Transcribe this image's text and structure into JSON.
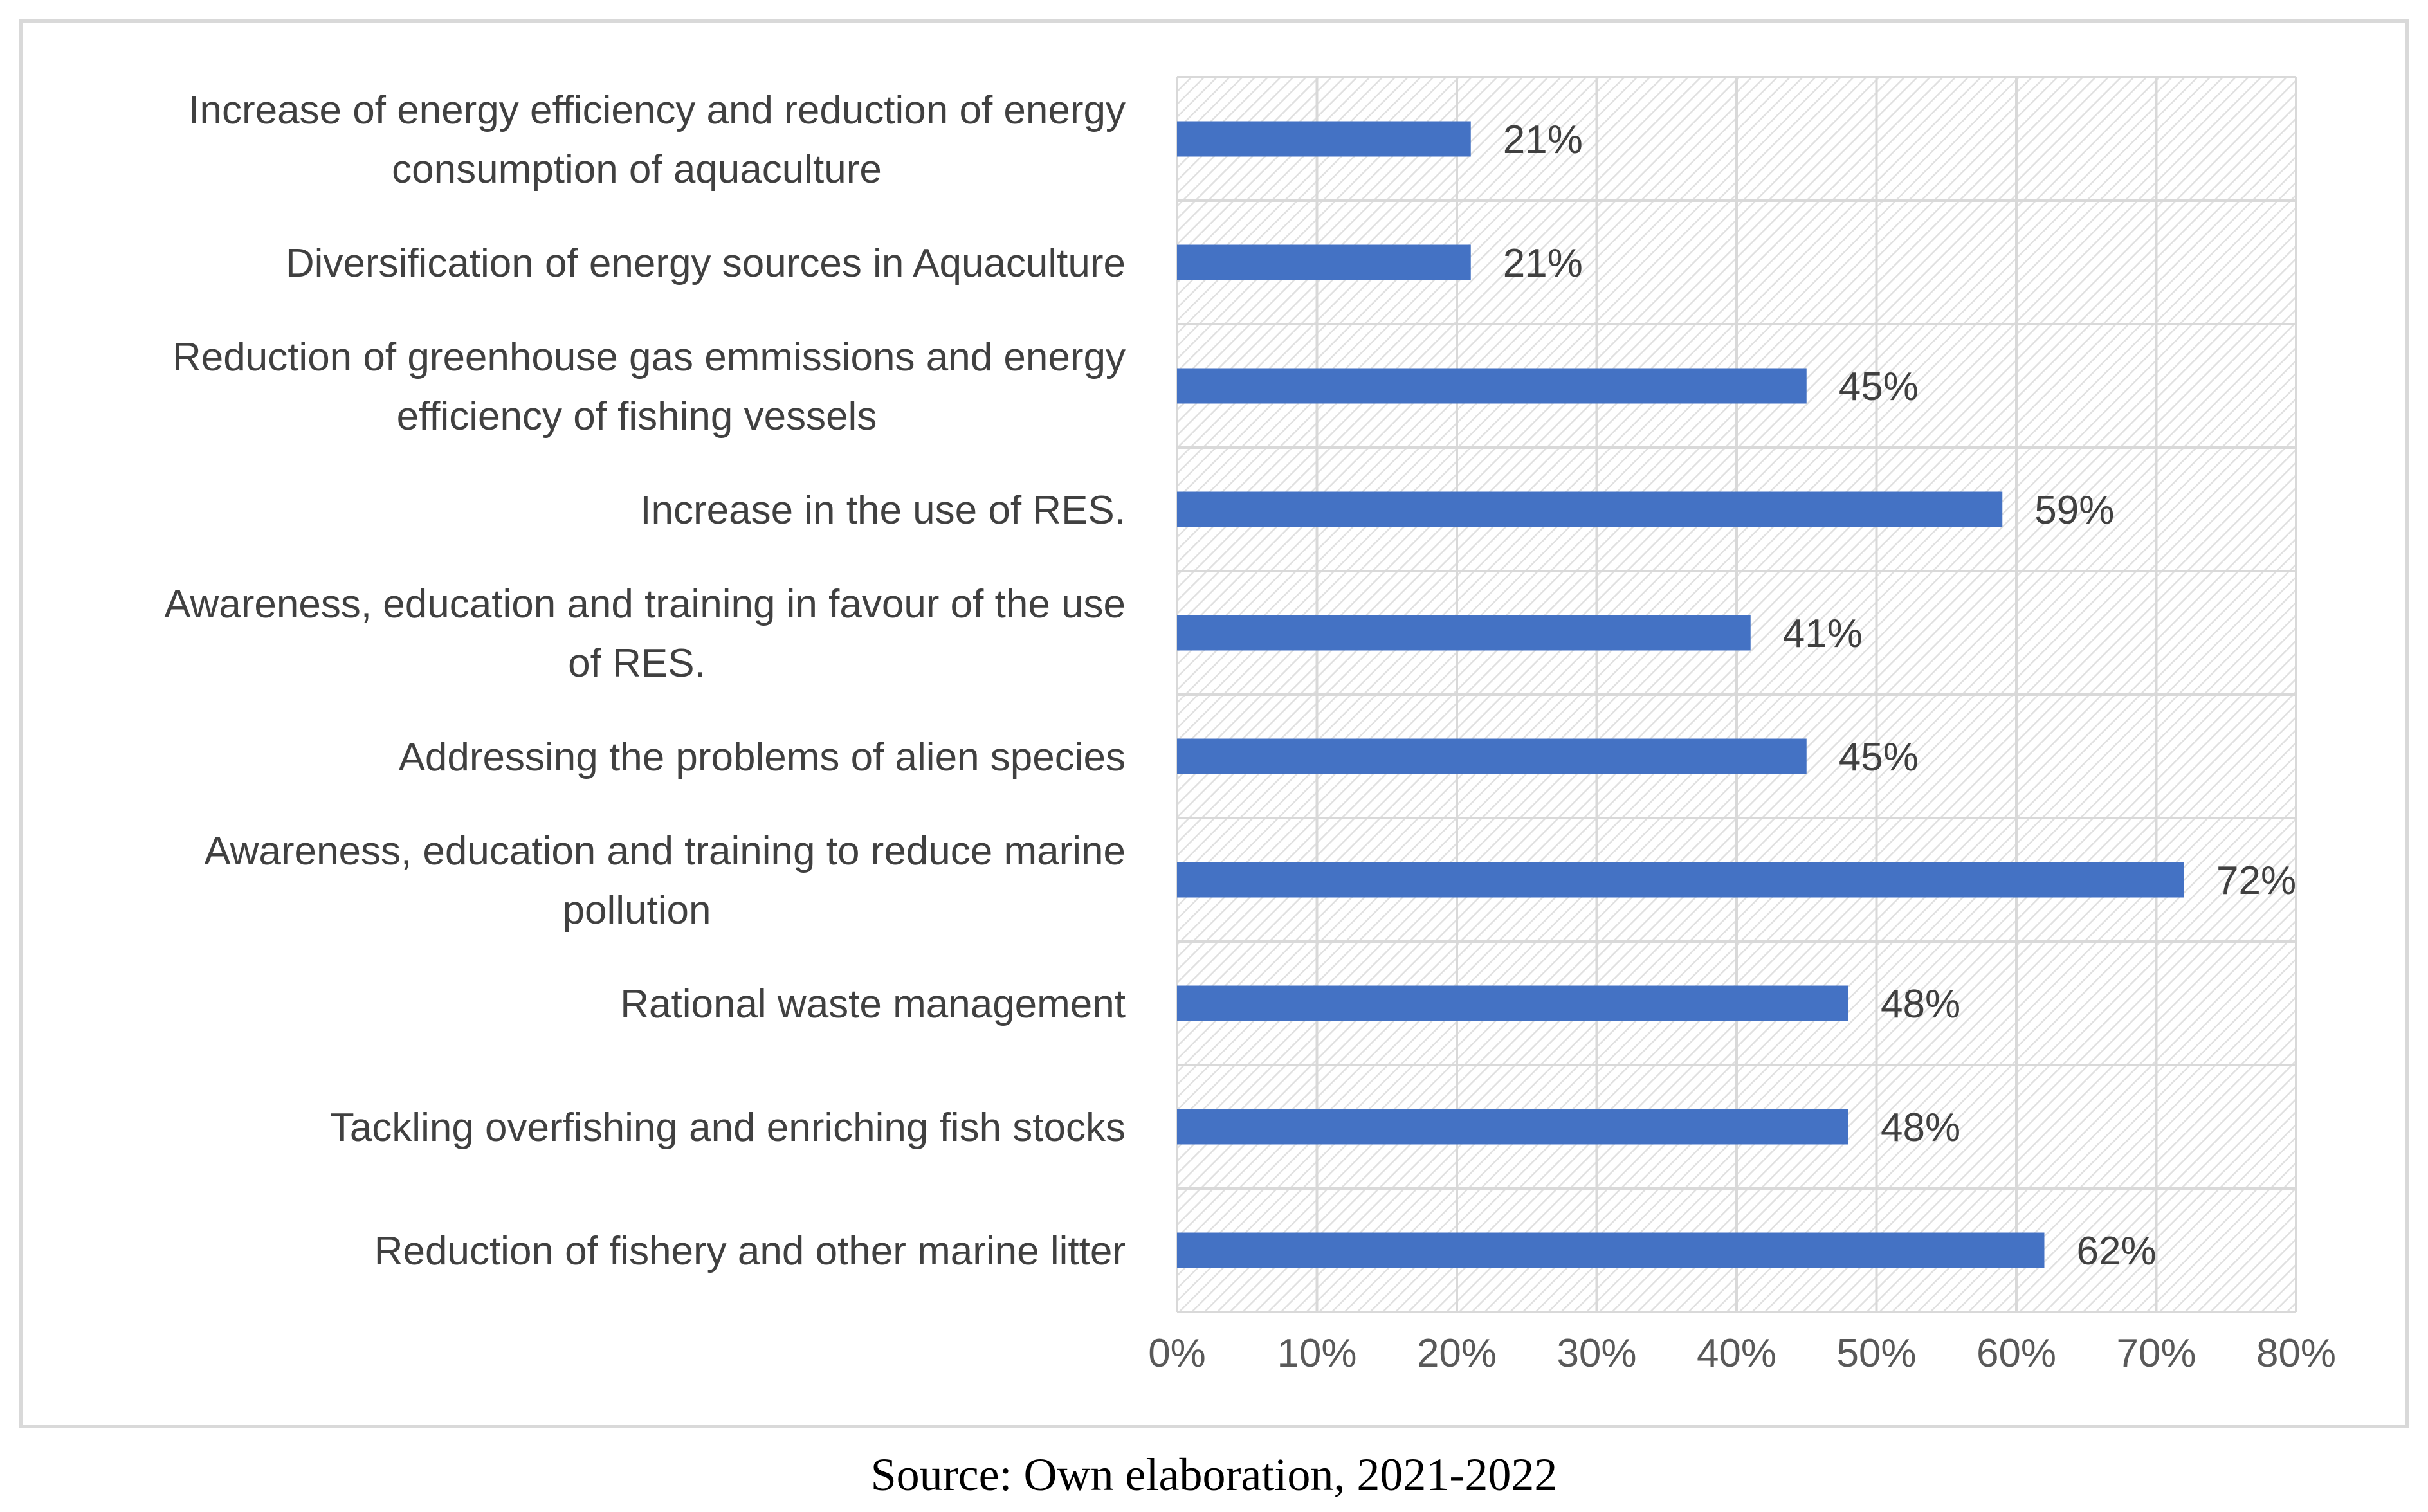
{
  "chart_data": {
    "type": "bar",
    "orientation": "horizontal",
    "categories": [
      "Increase of energy efficiency and reduction of energy consumption of aquaculture",
      "Diversification of energy sources in Aquaculture",
      "Reduction of greenhouse gas emmissions and energy efficiency of fishing vessels",
      "Increase in the use of RES.",
      "Awareness, education and training in favour of the use of RES.",
      "Addressing the problems of alien species",
      "Awareness, education and training to reduce marine pollution",
      "Rational waste management",
      "Tackling overfishing and enriching fish stocks",
      "Reduction of fishery and other marine litter"
    ],
    "category_lines": [
      [
        "Increase of energy efficiency and reduction of energy",
        "consumption of aquaculture"
      ],
      [
        "Diversification of energy sources in Aquaculture"
      ],
      [
        "Reduction of greenhouse gas emmissions and energy",
        "efficiency of fishing vessels"
      ],
      [
        "Increase in the use of RES."
      ],
      [
        "Awareness, education and training in favour of the use",
        "of RES."
      ],
      [
        "Addressing the problems of alien species"
      ],
      [
        "Awareness, education and training to reduce marine",
        "pollution"
      ],
      [
        "Rational waste management"
      ],
      [
        "Tackling overfishing and enriching fish stocks"
      ],
      [
        "Reduction of fishery and other marine litter"
      ]
    ],
    "values": [
      21,
      21,
      45,
      59,
      41,
      45,
      72,
      48,
      48,
      62
    ],
    "data_labels": [
      "21%",
      "21%",
      "45%",
      "59%",
      "41%",
      "45%",
      "72%",
      "48%",
      "48%",
      "62%"
    ],
    "x_ticks": [
      "0%",
      "10%",
      "20%",
      "30%",
      "40%",
      "50%",
      "60%",
      "70%",
      "80%"
    ],
    "xlim": [
      0,
      80
    ],
    "grid": true,
    "plot_background": "hatched",
    "bar_color": "#4472c4",
    "grid_color": "#d9d9d9"
  },
  "caption": "Source: Own elaboration, 2021-2022"
}
